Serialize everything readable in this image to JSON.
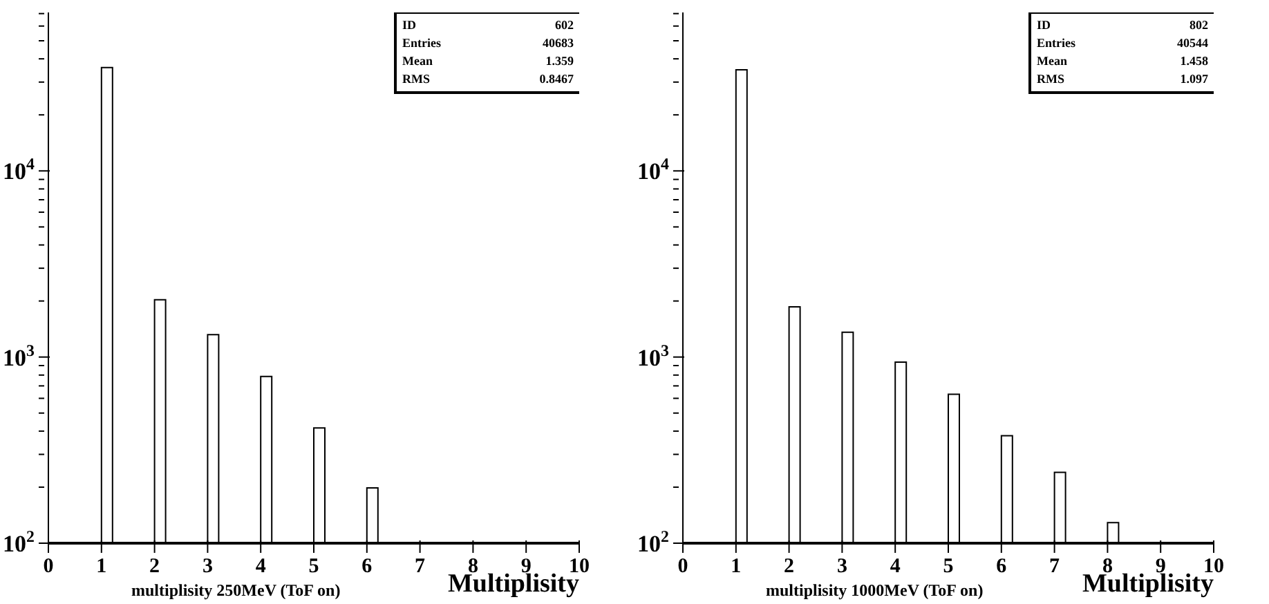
{
  "chart_data": [
    {
      "type": "histogram",
      "title": "multiplisity 250MeV (ToF on)",
      "xlabel": "Multiplisity",
      "color": "#ffffff",
      "log": true,
      "bins": [
        0,
        0.2,
        0.4,
        0.6,
        0.8,
        1,
        1.2,
        1.4,
        1.6,
        1.8,
        2,
        2.2,
        2.4,
        2.6,
        2.8,
        3,
        3.2,
        3.4,
        3.6,
        3.8,
        4,
        4.2,
        4.4,
        4.6,
        4.8,
        5,
        5.2,
        5.4,
        5.6,
        5.8,
        6,
        6.2,
        6.4,
        6.6,
        6.8,
        7,
        7.2,
        7.4,
        7.6,
        7.8,
        8,
        8.2,
        8.4,
        8.6,
        8.8,
        9,
        9.2,
        9.4,
        9.6,
        9.8,
        10
      ],
      "values": [
        null,
        null,
        null,
        null,
        null,
        35900,
        null,
        null,
        null,
        null,
        2030,
        null,
        null,
        null,
        null,
        1320,
        null,
        null,
        null,
        null,
        787,
        null,
        null,
        null,
        null,
        416,
        null,
        null,
        null,
        null,
        198,
        null,
        null,
        null,
        null,
        null,
        null,
        null,
        null,
        null,
        null,
        null,
        null,
        null,
        null,
        null,
        null,
        null,
        null,
        null
      ],
      "xlim": [
        0,
        10
      ],
      "xticks": [
        0,
        1,
        2,
        3,
        4,
        5,
        6,
        7,
        8,
        9,
        10
      ],
      "ylim": [
        100,
        71000
      ],
      "yticks": [
        {
          "value": 100,
          "label": "10$^{2}$"
        },
        {
          "value": 200,
          "label": null
        },
        {
          "value": 300,
          "label": null
        },
        {
          "value": 400,
          "label": null
        },
        {
          "value": 500,
          "label": null
        },
        {
          "value": 600,
          "label": null
        },
        {
          "value": 700,
          "label": null
        },
        {
          "value": 800,
          "label": null
        },
        {
          "value": 900,
          "label": null
        },
        {
          "value": 1000,
          "label": "10$^{3}$"
        },
        {
          "value": 2000,
          "label": null
        },
        {
          "value": 3000,
          "label": null
        },
        {
          "value": 4000,
          "label": null
        },
        {
          "value": 5000,
          "label": null
        },
        {
          "value": 6000,
          "label": null
        },
        {
          "value": 7000,
          "label": null
        },
        {
          "value": 8000,
          "label": null
        },
        {
          "value": 9000,
          "label": null
        },
        {
          "value": 10000,
          "label": "10$^{4}$"
        },
        {
          "value": 20000,
          "label": null
        },
        {
          "value": 30000,
          "label": null
        },
        {
          "value": 40000,
          "label": null
        },
        {
          "value": 50000,
          "label": null
        },
        {
          "value": 60000,
          "label": null
        },
        {
          "value": 70000,
          "label": null
        }
      ],
      "annotations": [
        "ID",
        "602",
        "Entries",
        "40683",
        "Mean",
        "1.359",
        "RMS",
        "0.8467"
      ]
    },
    {
      "type": "histogram",
      "title": "multiplisity 1000MeV (ToF on)",
      "xlabel": "Multiplisity",
      "color": "#ffffff",
      "log": true,
      "bins": [
        0,
        0.2,
        0.4,
        0.6,
        0.8,
        1,
        1.2,
        1.4,
        1.6,
        1.8,
        2,
        2.2,
        2.4,
        2.6,
        2.8,
        3,
        3.2,
        3.4,
        3.6,
        3.8,
        4,
        4.2,
        4.4,
        4.6,
        4.8,
        5,
        5.2,
        5.4,
        5.6,
        5.8,
        6,
        6.2,
        6.4,
        6.6,
        6.8,
        7,
        7.2,
        7.4,
        7.6,
        7.8,
        8,
        8.2,
        8.4,
        8.6,
        8.8,
        9,
        9.2,
        9.4,
        9.6,
        9.8,
        10
      ],
      "values": [
        null,
        null,
        null,
        null,
        null,
        34900,
        null,
        null,
        null,
        null,
        1860,
        null,
        null,
        null,
        null,
        1360,
        null,
        null,
        null,
        null,
        940,
        null,
        null,
        null,
        null,
        631,
        null,
        null,
        null,
        null,
        378,
        null,
        null,
        null,
        null,
        240,
        null,
        null,
        null,
        null,
        129,
        null,
        null,
        null,
        null,
        null,
        null,
        null,
        null,
        null
      ],
      "xlim": [
        0,
        10
      ],
      "xticks": [
        0,
        1,
        2,
        3,
        4,
        5,
        6,
        7,
        8,
        9,
        10
      ],
      "ylim": [
        100,
        71000
      ],
      "yticks": [
        {
          "value": 100,
          "label": "10$^{2}$"
        },
        {
          "value": 200,
          "label": null
        },
        {
          "value": 300,
          "label": null
        },
        {
          "value": 400,
          "label": null
        },
        {
          "value": 500,
          "label": null
        },
        {
          "value": 600,
          "label": null
        },
        {
          "value": 700,
          "label": null
        },
        {
          "value": 800,
          "label": null
        },
        {
          "value": 900,
          "label": null
        },
        {
          "value": 1000,
          "label": "10$^{3}$"
        },
        {
          "value": 2000,
          "label": null
        },
        {
          "value": 3000,
          "label": null
        },
        {
          "value": 4000,
          "label": null
        },
        {
          "value": 5000,
          "label": null
        },
        {
          "value": 6000,
          "label": null
        },
        {
          "value": 7000,
          "label": null
        },
        {
          "value": 8000,
          "label": null
        },
        {
          "value": 9000,
          "label": null
        },
        {
          "value": 10000,
          "label": "10$^{4}$"
        },
        {
          "value": 20000,
          "label": null
        },
        {
          "value": 30000,
          "label": null
        },
        {
          "value": 40000,
          "label": null
        },
        {
          "value": 50000,
          "label": null
        },
        {
          "value": 60000,
          "label": null
        },
        {
          "value": 70000,
          "label": null
        }
      ],
      "annotations": [
        "ID",
        "802",
        "Entries",
        "40544",
        "Mean",
        "1.458",
        "RMS",
        "1.097"
      ]
    }
  ]
}
